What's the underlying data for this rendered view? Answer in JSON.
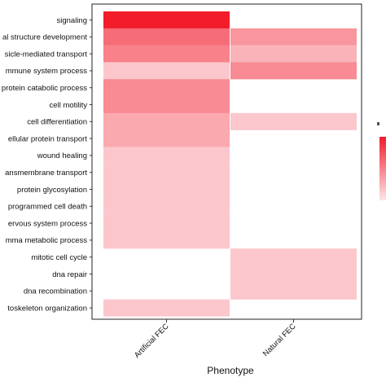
{
  "chart_data": {
    "type": "heatmap",
    "xlabel": "Phenotype",
    "columns": [
      "Artificial FEC",
      "Natural FEC"
    ],
    "rows": [
      "signaling",
      "al structure development",
      "sicle-mediated transport",
      "mmune system process",
      "protein catabolic process",
      "cell motility",
      "cell differentiation",
      "ellular protein transport",
      "wound healing",
      "ansmembrane transport",
      "protein glycosylation",
      "programmed cell death",
      "ervous system process",
      "mma metabolic process",
      "mitotic cell cycle",
      "dna repair",
      "dna recombination",
      "toskeleton organization"
    ],
    "values": [
      [
        1.0,
        null
      ],
      [
        0.6,
        0.4
      ],
      [
        0.5,
        0.25
      ],
      [
        0.15,
        0.45
      ],
      [
        0.45,
        null
      ],
      [
        0.45,
        null
      ],
      [
        0.3,
        0.15
      ],
      [
        0.3,
        null
      ],
      [
        0.15,
        null
      ],
      [
        0.15,
        null
      ],
      [
        0.15,
        null
      ],
      [
        0.15,
        null
      ],
      [
        0.15,
        null
      ],
      [
        0.15,
        null
      ],
      [
        null,
        0.15
      ],
      [
        null,
        0.15
      ],
      [
        null,
        0.15
      ],
      [
        0.15,
        null
      ]
    ],
    "color_low": "#fde5e8",
    "color_high": "#f21c2b",
    "background": "#ffffff",
    "legend": "right (partially cropped)"
  }
}
